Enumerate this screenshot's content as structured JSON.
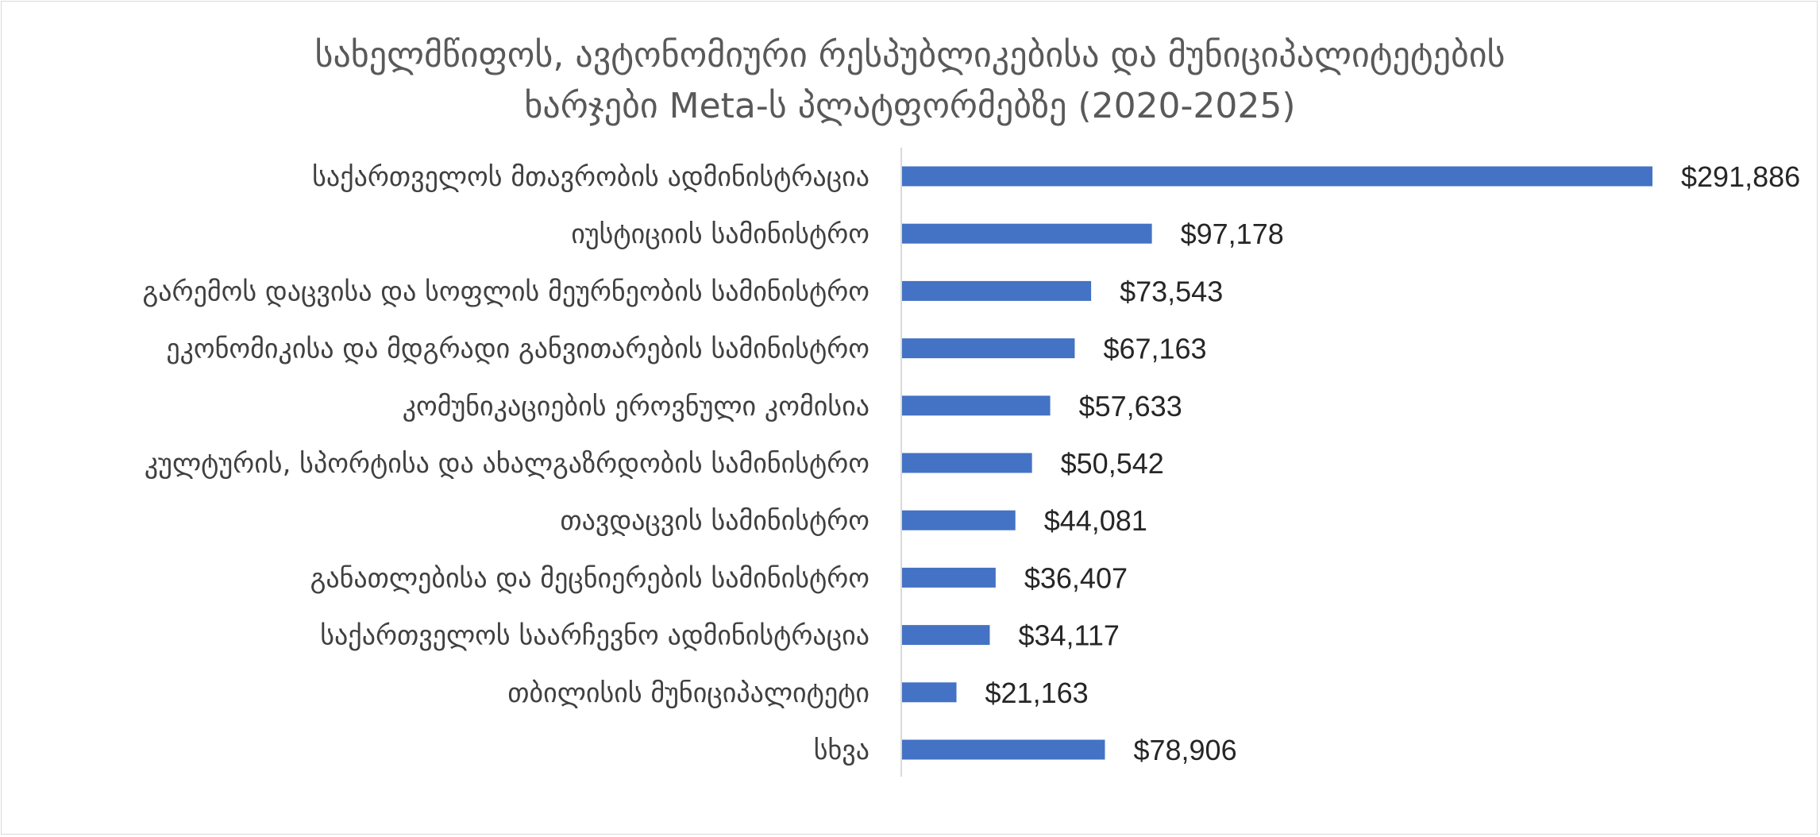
{
  "colors": {
    "bar": "#4472c4",
    "axis": "#d9d9d9",
    "text": "#404040",
    "title": "#595959"
  },
  "chart_data": {
    "type": "bar",
    "orientation": "horizontal",
    "title_line1": "სახელმწიფოს, ავტონომიური რესპუბლიკებისა და მუნიციპალიტეტების",
    "title_line2": "ხარჯები Meta-ს პლატფორმებზე (2020-2025)",
    "xlabel": "",
    "ylabel": "",
    "xlim": [
      0,
      291886
    ],
    "grid": false,
    "legend": "none",
    "categories": [
      "საქართველოს მთავრობის ადმინისტრაცია",
      "იუსტიციის სამინისტრო",
      "გარემოს დაცვისა და სოფლის მეურნეობის სამინისტრო",
      "ეკონომიკისა და მდგრადი განვითარების სამინისტრო",
      "კომუნიკაციების ეროვნული კომისია",
      "კულტურის, სპორტისა და ახალგაზრდობის სამინისტრო",
      "თავდაცვის სამინისტრო",
      "განათლებისა და მეცნიერების სამინისტრო",
      "საქართველოს საარჩევნო ადმინისტრაცია",
      "თბილისის მუნიციპალიტეტი",
      "სხვა"
    ],
    "values": [
      291886,
      97178,
      73543,
      67163,
      57633,
      50542,
      44081,
      36407,
      34117,
      21163,
      78906
    ],
    "value_labels": [
      "$291,886",
      "$97,178",
      "$73,543",
      "$67,163",
      "$57,633",
      "$50,542",
      "$44,081",
      "$36,407",
      "$34,117",
      "$21,163",
      "$78,906"
    ]
  }
}
